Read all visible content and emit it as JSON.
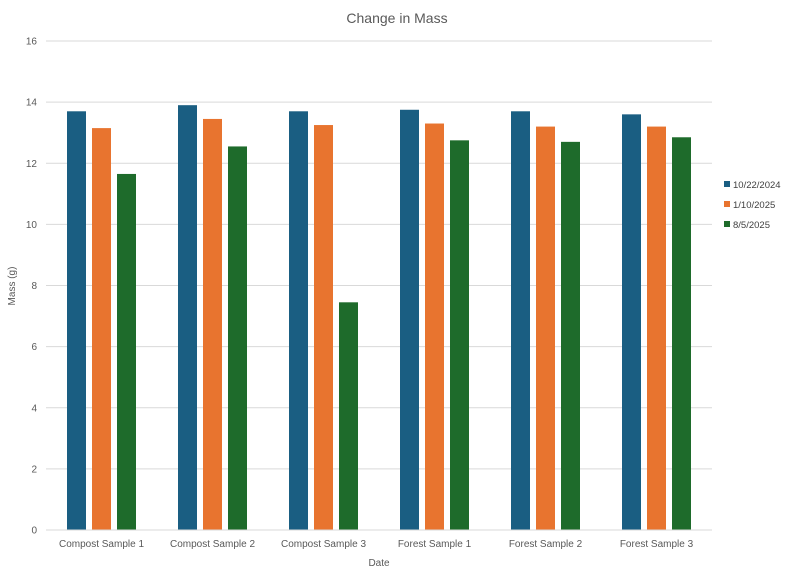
{
  "chart_data": {
    "type": "bar",
    "title": "Change in Mass",
    "xlabel": "Date",
    "ylabel": "Mass (g)",
    "ylim": [
      0,
      16
    ],
    "yticks": [
      0,
      2,
      4,
      6,
      8,
      10,
      12,
      14,
      16
    ],
    "grid": true,
    "legend_position": "right",
    "categories": [
      "Compost Sample 1",
      "Compost Sample 2",
      "Compost Sample 3",
      "Forest Sample 1",
      "Forest Sample 2",
      "Forest Sample 3"
    ],
    "series": [
      {
        "name": "10/22/2024",
        "color": "#1a5e82",
        "values": [
          13.7,
          13.9,
          13.7,
          13.75,
          13.7,
          13.6
        ]
      },
      {
        "name": "1/10/2025",
        "color": "#e8742f",
        "values": [
          13.15,
          13.45,
          13.25,
          13.3,
          13.2,
          13.2
        ]
      },
      {
        "name": "8/5/2025",
        "color": "#1e6b2b",
        "values": [
          11.65,
          12.55,
          7.45,
          12.75,
          12.7,
          12.85
        ]
      }
    ]
  }
}
